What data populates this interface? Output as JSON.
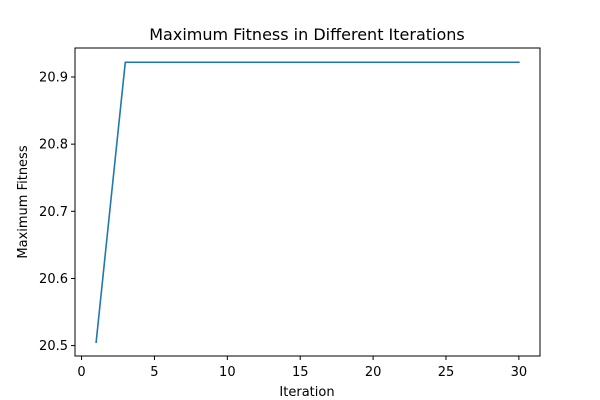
{
  "chart_data": {
    "type": "line",
    "title": "Maximum Fitness in Different Iterations",
    "xlabel": "Iteration",
    "ylabel": "Maximum Fitness",
    "xlim": [
      -0.45,
      31.45
    ],
    "ylim": [
      20.4845,
      20.9432
    ],
    "xticks": [
      0,
      5,
      10,
      15,
      20,
      25,
      30
    ],
    "yticks": [
      20.5,
      20.6,
      20.7,
      20.8,
      20.9
    ],
    "grid": false,
    "series": [
      {
        "color": "#1f77b4",
        "x": [
          1,
          2,
          3,
          4,
          5,
          6,
          7,
          8,
          9,
          10,
          11,
          12,
          13,
          14,
          15,
          16,
          17,
          18,
          19,
          20,
          21,
          22,
          23,
          24,
          25,
          26,
          27,
          28,
          29,
          30
        ],
        "y": [
          20.505,
          20.714,
          20.922,
          20.922,
          20.922,
          20.922,
          20.922,
          20.922,
          20.922,
          20.922,
          20.922,
          20.922,
          20.922,
          20.922,
          20.922,
          20.922,
          20.922,
          20.922,
          20.922,
          20.922,
          20.922,
          20.922,
          20.922,
          20.922,
          20.922,
          20.922,
          20.922,
          20.922,
          20.922,
          20.922
        ]
      }
    ]
  }
}
